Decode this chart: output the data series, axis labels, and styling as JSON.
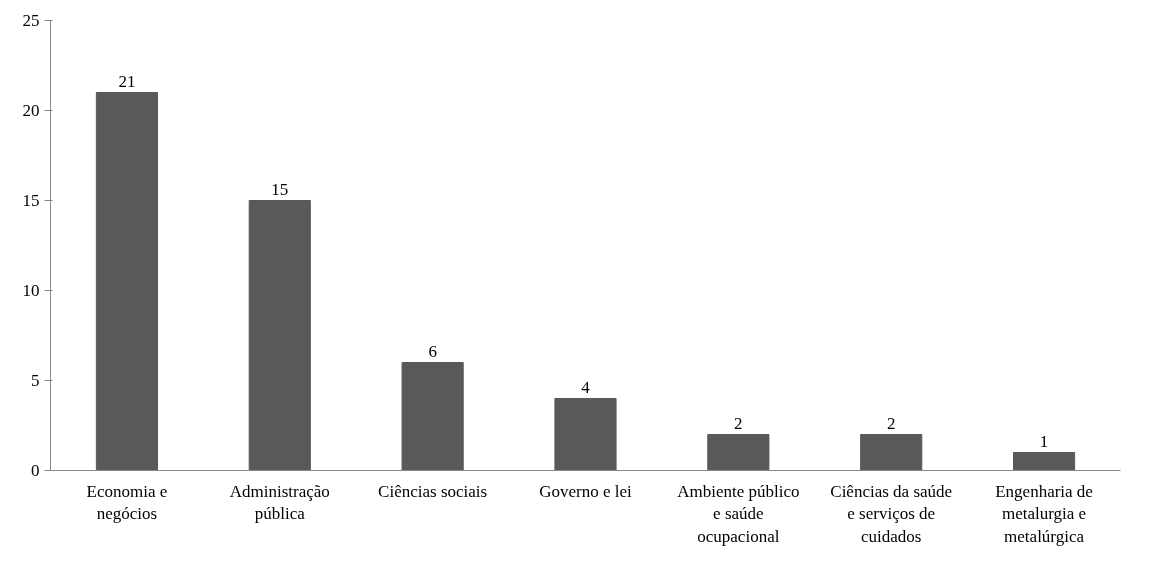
{
  "chart_data": {
    "type": "bar",
    "categories": [
      "Economia e negócios",
      "Administração pública",
      "Ciências sociais",
      "Governo e lei",
      "Ambiente público e saúde ocupacional",
      "Ciências da saúde e serviços de cuidados",
      "Engenharia de metalurgia e metalúrgica"
    ],
    "values": [
      21,
      15,
      6,
      4,
      2,
      2,
      1
    ],
    "color": "#595959",
    "ylim": [
      0,
      25
    ],
    "yticks": [
      0,
      5,
      10,
      15,
      20,
      25
    ],
    "grid": false,
    "data_labels": true
  }
}
